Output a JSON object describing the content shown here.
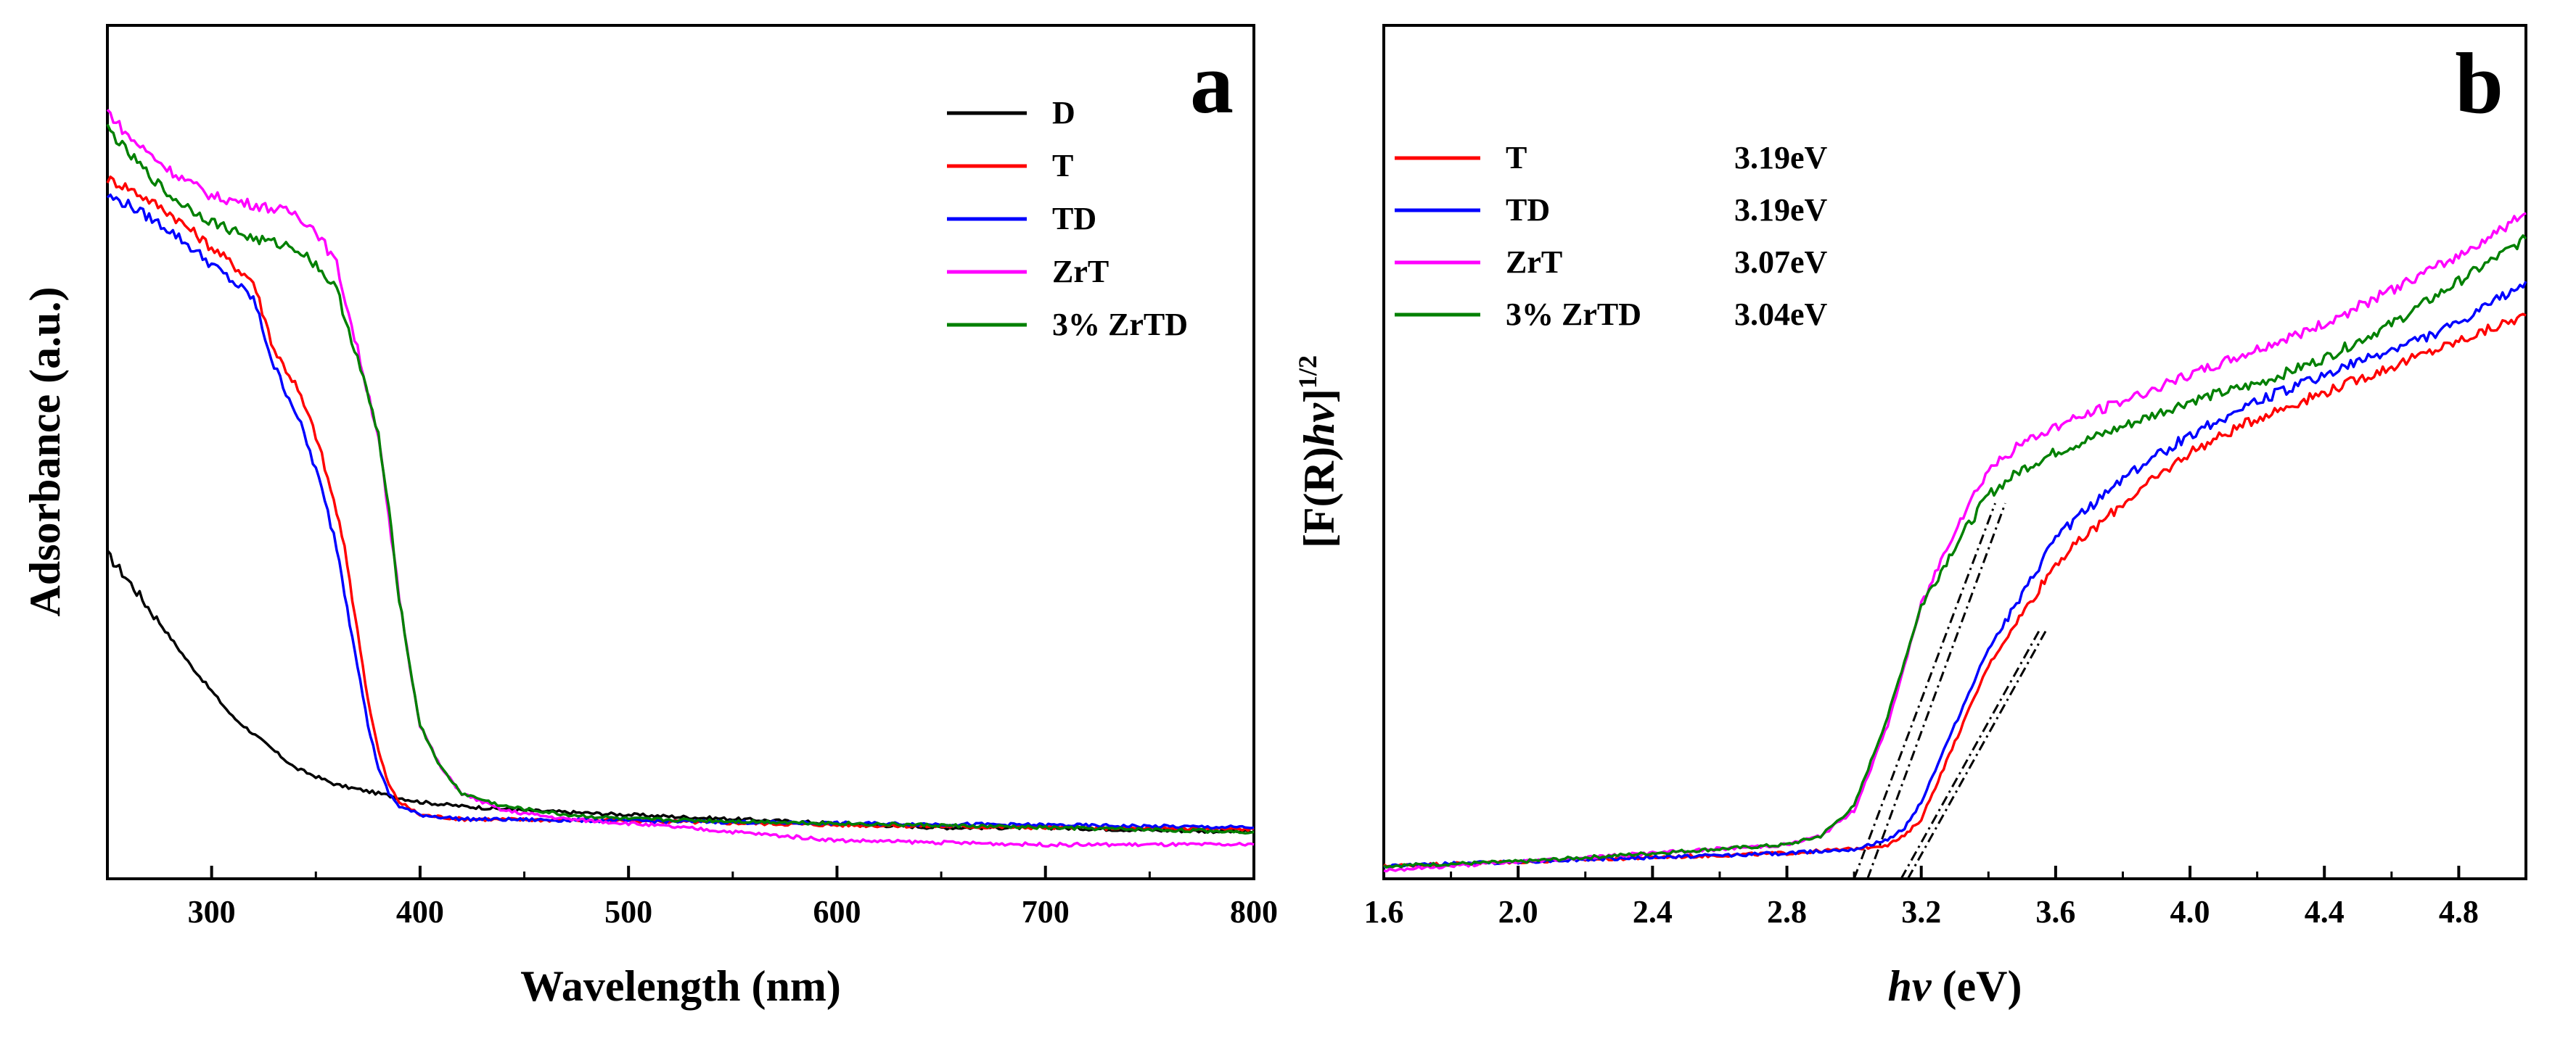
{
  "chart_data": [
    {
      "type": "line",
      "panel_label": "a",
      "xlabel": "Wavelength (nm)",
      "ylabel": "Adsorbance (a.u.)",
      "xlim": [
        250,
        800
      ],
      "ylim": [
        0,
        1.0
      ],
      "xticks": [
        300,
        400,
        500,
        600,
        700,
        800
      ],
      "xtick_labels": [
        "300",
        "400",
        "500",
        "600",
        "700",
        "800"
      ],
      "legend_position": "top-right",
      "series": [
        {
          "name": "D",
          "color": "#000000",
          "x": [
            250,
            260,
            275,
            290,
            300,
            310,
            325,
            340,
            360,
            380,
            400,
            420,
            450,
            500,
            550,
            600,
            650,
            700,
            750,
            800
          ],
          "y": [
            0.38,
            0.35,
            0.3,
            0.25,
            0.22,
            0.19,
            0.16,
            0.13,
            0.11,
            0.1,
            0.09,
            0.085,
            0.08,
            0.075,
            0.07,
            0.065,
            0.06,
            0.06,
            0.057,
            0.055
          ]
        },
        {
          "name": "T",
          "color": "#ff0000",
          "x": [
            250,
            260,
            280,
            300,
            320,
            330,
            340,
            350,
            360,
            365,
            370,
            375,
            380,
            385,
            390,
            400,
            420,
            500,
            600,
            700,
            800
          ],
          "y": [
            0.82,
            0.81,
            0.78,
            0.74,
            0.7,
            0.62,
            0.58,
            0.52,
            0.43,
            0.37,
            0.29,
            0.21,
            0.15,
            0.11,
            0.09,
            0.075,
            0.07,
            0.068,
            0.063,
            0.06,
            0.058
          ]
        },
        {
          "name": "TD",
          "color": "#0000ff",
          "x": [
            250,
            260,
            280,
            300,
            320,
            330,
            340,
            350,
            360,
            365,
            370,
            375,
            380,
            385,
            390,
            400,
            420,
            500,
            600,
            700,
            800
          ],
          "y": [
            0.8,
            0.79,
            0.76,
            0.72,
            0.68,
            0.6,
            0.55,
            0.48,
            0.39,
            0.32,
            0.25,
            0.18,
            0.13,
            0.1,
            0.085,
            0.075,
            0.07,
            0.068,
            0.065,
            0.063,
            0.06
          ]
        },
        {
          "name": "ZrT",
          "color": "#ff00ff",
          "x": [
            250,
            260,
            280,
            300,
            320,
            340,
            350,
            360,
            370,
            380,
            385,
            390,
            395,
            400,
            410,
            420,
            440,
            470,
            500,
            550,
            600,
            700,
            800
          ],
          "y": [
            0.9,
            0.87,
            0.83,
            0.8,
            0.79,
            0.78,
            0.76,
            0.72,
            0.62,
            0.52,
            0.42,
            0.33,
            0.25,
            0.18,
            0.13,
            0.1,
            0.08,
            0.07,
            0.065,
            0.055,
            0.045,
            0.04,
            0.04
          ]
        },
        {
          "name": "3% ZrTD",
          "color": "#008000",
          "x": [
            250,
            260,
            280,
            300,
            320,
            340,
            350,
            360,
            370,
            380,
            385,
            390,
            395,
            400,
            410,
            420,
            440,
            470,
            500,
            600,
            700,
            800
          ],
          "y": [
            0.88,
            0.85,
            0.8,
            0.77,
            0.75,
            0.74,
            0.72,
            0.69,
            0.61,
            0.52,
            0.43,
            0.33,
            0.25,
            0.18,
            0.13,
            0.1,
            0.085,
            0.075,
            0.07,
            0.065,
            0.06,
            0.055
          ]
        }
      ]
    },
    {
      "type": "line",
      "panel_label": "b",
      "xlabel_italic": "hv",
      "xlabel_unit": " (eV)",
      "ylabel_main": "[F(R)",
      "ylabel_italic": "hv",
      "ylabel_close": "]",
      "ylabel_sup": "1/2",
      "xlim": [
        1.6,
        5.0
      ],
      "ylim": [
        0,
        1.0
      ],
      "xticks": [
        1.6,
        2.0,
        2.4,
        2.8,
        3.2,
        3.6,
        4.0,
        4.4,
        4.8
      ],
      "xtick_labels": [
        "1.6",
        "2.0",
        "2.4",
        "2.8",
        "3.2",
        "3.6",
        "4.0",
        "4.4",
        "4.8"
      ],
      "legend_position": "top-left",
      "series": [
        {
          "name": "T",
          "band_gap": "3.19eV",
          "color": "#ff0000",
          "x": [
            1.6,
            2.0,
            2.4,
            2.8,
            3.0,
            3.1,
            3.15,
            3.2,
            3.3,
            3.4,
            3.5,
            3.6,
            3.8,
            4.0,
            4.2,
            4.4,
            4.6,
            4.8,
            5.0
          ],
          "y": [
            0.015,
            0.02,
            0.025,
            0.03,
            0.035,
            0.04,
            0.05,
            0.07,
            0.16,
            0.25,
            0.31,
            0.37,
            0.44,
            0.5,
            0.54,
            0.57,
            0.6,
            0.63,
            0.66
          ]
        },
        {
          "name": "TD",
          "band_gap": "3.19eV",
          "color": "#0000ff",
          "x": [
            1.6,
            2.0,
            2.4,
            2.8,
            3.0,
            3.1,
            3.15,
            3.2,
            3.3,
            3.4,
            3.5,
            3.6,
            3.8,
            4.0,
            4.2,
            4.4,
            4.6,
            4.8,
            5.0
          ],
          "y": [
            0.015,
            0.02,
            0.025,
            0.03,
            0.035,
            0.045,
            0.06,
            0.09,
            0.18,
            0.27,
            0.33,
            0.4,
            0.47,
            0.52,
            0.56,
            0.59,
            0.62,
            0.65,
            0.7
          ]
        },
        {
          "name": "ZrT",
          "band_gap": "3.07eV",
          "color": "#ff00ff",
          "x": [
            1.6,
            2.0,
            2.4,
            2.8,
            2.9,
            3.0,
            3.1,
            3.2,
            3.3,
            3.4,
            3.5,
            3.6,
            3.8,
            4.0,
            4.2,
            4.4,
            4.6,
            4.8,
            5.0
          ],
          "y": [
            0.01,
            0.02,
            0.03,
            0.04,
            0.05,
            0.08,
            0.18,
            0.32,
            0.41,
            0.48,
            0.51,
            0.53,
            0.56,
            0.59,
            0.62,
            0.65,
            0.69,
            0.73,
            0.78
          ]
        },
        {
          "name": "3% ZrTD",
          "band_gap": "3.04eV",
          "color": "#008000",
          "x": [
            1.6,
            2.0,
            2.4,
            2.8,
            2.9,
            3.0,
            3.1,
            3.2,
            3.3,
            3.4,
            3.5,
            3.6,
            3.8,
            4.0,
            4.2,
            4.4,
            4.6,
            4.8,
            5.0
          ],
          "y": [
            0.015,
            0.02,
            0.03,
            0.04,
            0.05,
            0.085,
            0.19,
            0.32,
            0.39,
            0.45,
            0.48,
            0.5,
            0.53,
            0.56,
            0.58,
            0.61,
            0.65,
            0.7,
            0.75
          ]
        }
      ],
      "tangents": [
        {
          "x": [
            3.0,
            3.42
          ],
          "y": [
            0,
            0.44
          ]
        },
        {
          "x": [
            3.04,
            3.45
          ],
          "y": [
            0,
            0.44
          ]
        },
        {
          "x": [
            3.14,
            3.55
          ],
          "y": [
            0,
            0.29
          ]
        },
        {
          "x": [
            3.16,
            3.57
          ],
          "y": [
            0,
            0.29
          ]
        }
      ]
    }
  ]
}
